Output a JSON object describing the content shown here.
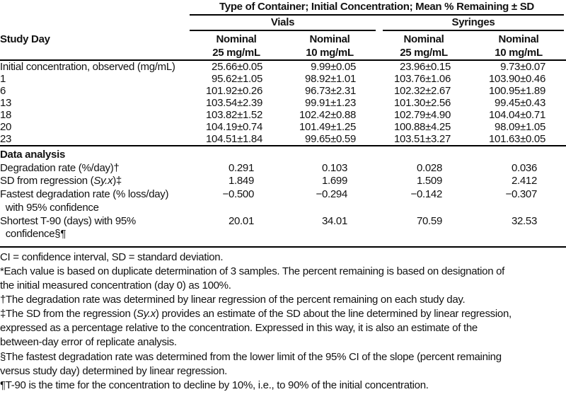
{
  "table": {
    "spanner": "Type of Container; Initial Concentration; Mean % Remaining ± SD",
    "row_axis_label": "Study Day",
    "groups": {
      "vials": "Vials",
      "syringes": "Syringes"
    },
    "col_headers": [
      "Nominal\n25 mg/mL",
      "Nominal\n10 mg/mL",
      "Nominal\n25 mg/mL",
      "Nominal\n10 mg/mL"
    ],
    "rows": [
      {
        "label": "Initial concentration, observed (mg/mL)",
        "v": [
          "25.66±0.05",
          "9.99±0.05",
          "23.96±0.15",
          "9.73±0.07"
        ]
      },
      {
        "label": "1",
        "v": [
          "95.62±1.05",
          "98.92±1.01",
          "103.76±1.06",
          "103.90±0.46"
        ]
      },
      {
        "label": "6",
        "v": [
          "101.92±0.26",
          "96.73±2.31",
          "102.32±2.67",
          "100.95±1.89"
        ]
      },
      {
        "label": "13",
        "v": [
          "103.54±2.39",
          "99.91±1.23",
          "101.30±2.56",
          "99.45±0.43"
        ]
      },
      {
        "label": "18",
        "v": [
          "103.82±1.52",
          "102.42±0.88",
          "102.79±4.90",
          "104.04±0.71"
        ]
      },
      {
        "label": "20",
        "v": [
          "104.19±0.74",
          "101.49±1.25",
          "100.88±4.25",
          "98.09±1.05"
        ]
      },
      {
        "label": "23",
        "v": [
          "104.51±1.84",
          "99.65±0.59",
          "103.51±3.27",
          "101.63±0.05"
        ]
      }
    ],
    "analysis_header": "Data analysis",
    "analysis_rows": [
      {
        "label": "Degradation rate (%/day)†",
        "v": [
          "0.291",
          "0.103",
          "0.028",
          "0.036"
        ]
      },
      {
        "label_pre": "SD from regression (",
        "label_italic": "Sy.x",
        "label_post": ")‡",
        "v": [
          "1.849",
          "1.699",
          "1.509",
          "2.412"
        ]
      },
      {
        "label": "Fastest degradation rate (% loss/day)\n  with 95% confidence",
        "v": [
          "−0.500",
          "−0.294",
          "−0.142",
          "−0.307"
        ]
      },
      {
        "label": "Shortest T-90 (days) with 95%\n  confidence§¶",
        "v": [
          "20.01",
          "34.01",
          "70.59",
          "32.53"
        ]
      }
    ]
  },
  "footnotes": {
    "abbrev": "CI = confidence interval, SD = standard deviation.",
    "star": "*Each value is based on duplicate determination of 3 samples. The percent remaining is based on designation of\nthe initial measured concentration (day 0) as 100%.",
    "dagger": "†The degradation rate was determined by linear regression of the percent remaining on each study day.",
    "ddagger_pre": "‡The SD from the regression (",
    "ddagger_italic": "Sy.x",
    "ddagger_post": ") provides an estimate of the SD about the line determined by linear regression,\nexpressed as a percentage relative to the concentration. Expressed in this way, it is also an estimate of the\nbetween-day error of replicate analysis.",
    "section": "§The fastest degradation rate was determined from the lower limit of the 95% CI of the slope (percent remaining\nversus study day) determined by linear regression.",
    "pilcrow": "¶T-90 is the time for the concentration to decline by 10%, i.e., to 90% of the initial concentration."
  }
}
